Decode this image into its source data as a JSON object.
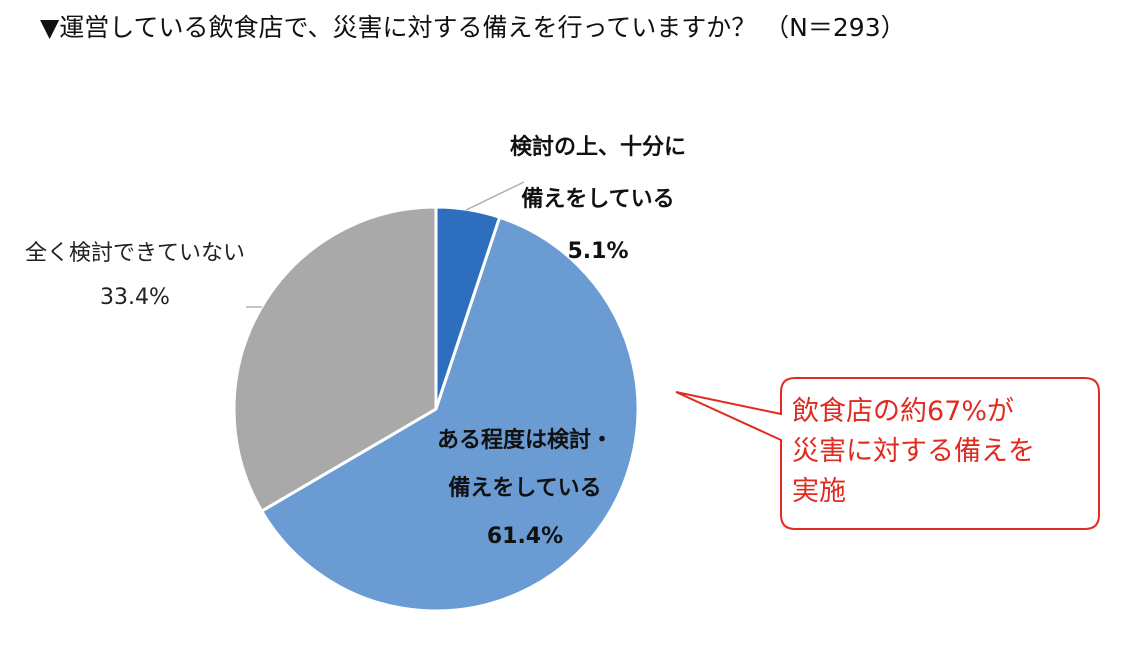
{
  "title": "▼運営している飲食店で、災害に対する備えを行っていますか？ （N＝293）",
  "chart_data": {
    "type": "pie",
    "start_angle_deg": 0,
    "direction": "clockwise",
    "slices": [
      {
        "lines": [
          "検討の上、十分に",
          "備えをしている"
        ],
        "pct_label": "5.1%",
        "value": 5.1,
        "color": "#2e6ebe"
      },
      {
        "lines": [
          "ある程度は検討・",
          "備えをしている"
        ],
        "pct_label": "61.4%",
        "value": 61.4,
        "color": "#6a9bd2"
      },
      {
        "lines": [
          "全く検討できていない"
        ],
        "pct_label": "33.4%",
        "value": 33.4,
        "color": "#a9a9a9"
      }
    ]
  },
  "callout": {
    "lines": [
      "飲食店の約67%が",
      "災害に対する備えを",
      "実施"
    ],
    "border_color": "#e02b20",
    "text_color": "#e02b20"
  }
}
